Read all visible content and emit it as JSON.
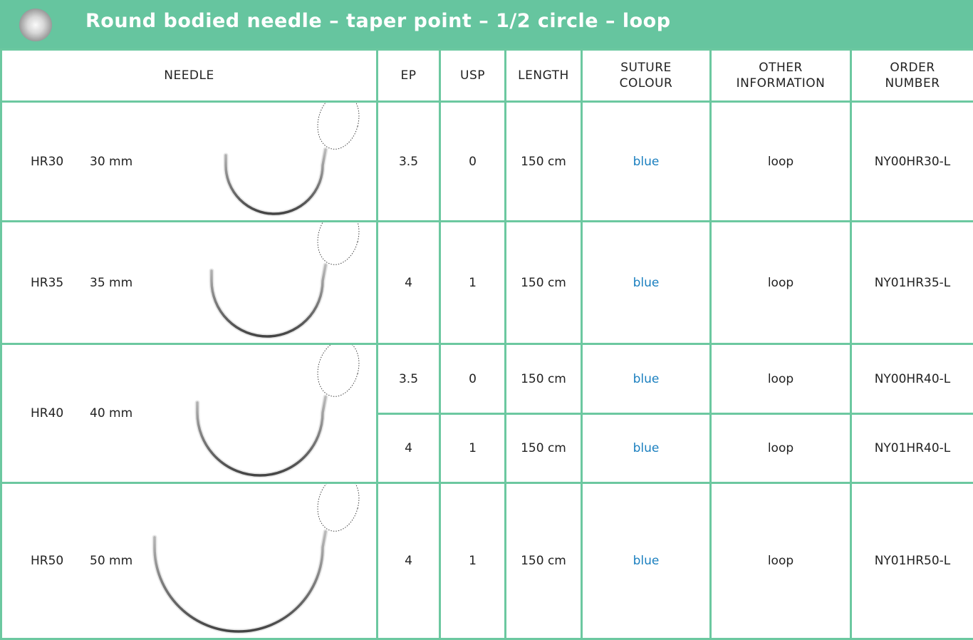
{
  "header": {
    "title": "Round bodied needle – taper point – 1/2 circle – loop"
  },
  "table": {
    "columns": [
      "NEEDLE",
      "EP",
      "USP",
      "LENGTH",
      "SUTURE\nCOLOUR",
      "OTHER\nINFORMATION",
      "ORDER\nNUMBER"
    ],
    "rows": [
      {
        "code": "HR30",
        "size": "30 mm",
        "variants": [
          {
            "ep": "3.5",
            "usp": "0",
            "length": "150 cm",
            "colour": "blue",
            "other": "loop",
            "order": "NY00HR30-L"
          }
        ]
      },
      {
        "code": "HR35",
        "size": "35 mm",
        "variants": [
          {
            "ep": "4",
            "usp": "1",
            "length": "150 cm",
            "colour": "blue",
            "other": "loop",
            "order": "NY01HR35-L"
          }
        ]
      },
      {
        "code": "HR40",
        "size": "40 mm",
        "variants": [
          {
            "ep": "3.5",
            "usp": "0",
            "length": "150 cm",
            "colour": "blue",
            "other": "loop",
            "order": "NY00HR40-L"
          },
          {
            "ep": "4",
            "usp": "1",
            "length": "150 cm",
            "colour": "blue",
            "other": "loop",
            "order": "NY01HR40-L"
          }
        ]
      },
      {
        "code": "HR50",
        "size": "50 mm",
        "variants": [
          {
            "ep": "4",
            "usp": "1",
            "length": "150 cm",
            "colour": "blue",
            "other": "loop",
            "order": "NY01HR50-L"
          }
        ]
      }
    ]
  }
}
